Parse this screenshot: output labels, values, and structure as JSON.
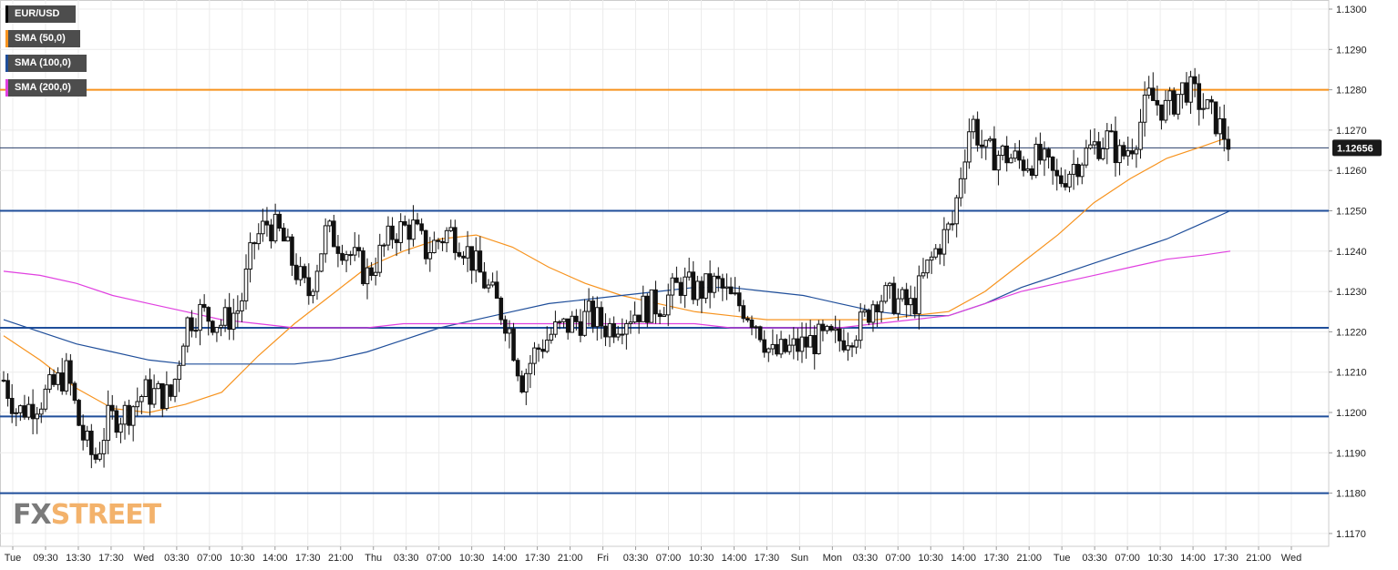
{
  "legend": [
    {
      "label": "EUR/USD",
      "color": "#000000"
    },
    {
      "label": "SMA (50,0)",
      "color": "#f7931e"
    },
    {
      "label": "SMA (100,0)",
      "color": "#1f4e9a"
    },
    {
      "label": "SMA (200,0)",
      "color": "#e040e0"
    }
  ],
  "logo": {
    "part1": "FX",
    "part2": "STREET"
  },
  "price_label": "1.12656",
  "chart_data": {
    "type": "candlestick",
    "instrument": "EUR/USD",
    "ylim": [
      1.1165,
      1.1302
    ],
    "y_ticks": [
      "1.1300",
      "1.1290",
      "1.1280",
      "1.1270",
      "1.1260",
      "1.1250",
      "1.1240",
      "1.1230",
      "1.1220",
      "1.1210",
      "1.1200",
      "1.1190",
      "1.1180",
      "1.1170"
    ],
    "x_ticks": [
      "Tue",
      "09:30",
      "13:30",
      "17:30",
      "Wed",
      "03:30",
      "07:00",
      "10:30",
      "14:00",
      "17:30",
      "21:00",
      "Thu",
      "03:30",
      "07:00",
      "10:30",
      "14:00",
      "17:30",
      "21:00",
      "Fri",
      "03:30",
      "07:00",
      "10:30",
      "14:00",
      "17:30",
      "Sun",
      "Mon",
      "03:30",
      "07:00",
      "10:30",
      "14:00",
      "17:30",
      "21:00",
      "Tue",
      "03:30",
      "07:00",
      "10:30",
      "14:00",
      "17:30",
      "21:00",
      "Wed"
    ],
    "grid": true,
    "horizontal_levels": [
      {
        "value": 1.128,
        "color": "#f7931e"
      },
      {
        "value": 1.125,
        "color": "#1f4e9a"
      },
      {
        "value": 1.1221,
        "color": "#1f4e9a"
      },
      {
        "value": 1.1199,
        "color": "#1f4e9a"
      },
      {
        "value": 1.118,
        "color": "#1f4e9a"
      }
    ],
    "last_price": 1.12656,
    "close_path": [
      [
        0,
        1.1208
      ],
      [
        15,
        1.12
      ],
      [
        40,
        1.1203
      ],
      [
        70,
        1.121
      ],
      [
        85,
        1.1195
      ],
      [
        100,
        1.1188
      ],
      [
        115,
        1.1198
      ],
      [
        135,
        1.12
      ],
      [
        155,
        1.1205
      ],
      [
        185,
        1.1204
      ],
      [
        200,
        1.1222
      ],
      [
        215,
        1.1225
      ],
      [
        240,
        1.1222
      ],
      [
        260,
        1.1226
      ],
      [
        275,
        1.1242
      ],
      [
        290,
        1.1247
      ],
      [
        305,
        1.1244
      ],
      [
        320,
        1.1236
      ],
      [
        335,
        1.1229
      ],
      [
        355,
        1.1245
      ],
      [
        375,
        1.1241
      ],
      [
        400,
        1.1234
      ],
      [
        430,
        1.1245
      ],
      [
        450,
        1.1246
      ],
      [
        465,
        1.124
      ],
      [
        490,
        1.1245
      ],
      [
        505,
        1.1242
      ],
      [
        520,
        1.1236
      ],
      [
        540,
        1.1228
      ],
      [
        555,
        1.1222
      ],
      [
        570,
        1.1208
      ],
      [
        585,
        1.1215
      ],
      [
        605,
        1.122
      ],
      [
        625,
        1.1222
      ],
      [
        645,
        1.1224
      ],
      [
        665,
        1.1221
      ],
      [
        685,
        1.1224
      ],
      [
        705,
        1.1226
      ],
      [
        725,
        1.1227
      ],
      [
        745,
        1.1232
      ],
      [
        765,
        1.123
      ],
      [
        785,
        1.1232
      ],
      [
        800,
        1.1228
      ],
      [
        815,
        1.1226
      ],
      [
        830,
        1.1222
      ],
      [
        845,
        1.1214
      ],
      [
        870,
        1.1216
      ],
      [
        895,
        1.1218
      ],
      [
        920,
        1.1218
      ],
      [
        945,
        1.1222
      ],
      [
        960,
        1.1229
      ],
      [
        980,
        1.1228
      ],
      [
        1000,
        1.1226
      ],
      [
        1015,
        1.1235
      ],
      [
        1030,
        1.1242
      ],
      [
        1045,
        1.1247
      ],
      [
        1055,
        1.1262
      ],
      [
        1065,
        1.1273
      ],
      [
        1080,
        1.1264
      ],
      [
        1100,
        1.1264
      ],
      [
        1120,
        1.1262
      ],
      [
        1140,
        1.1263
      ],
      [
        1160,
        1.1257
      ],
      [
        1180,
        1.1262
      ],
      [
        1200,
        1.1266
      ],
      [
        1215,
        1.1268
      ],
      [
        1230,
        1.1263
      ],
      [
        1245,
        1.1268
      ],
      [
        1260,
        1.1278
      ],
      [
        1280,
        1.1275
      ],
      [
        1300,
        1.1281
      ],
      [
        1320,
        1.1276
      ],
      [
        1335,
        1.1272
      ],
      [
        1352,
        1.12656
      ]
    ],
    "series": [
      {
        "name": "SMA (50,0)",
        "color": "#f7931e",
        "points": [
          [
            0,
            1.1219
          ],
          [
            40,
            1.1213
          ],
          [
            80,
            1.1206
          ],
          [
            120,
            1.1201
          ],
          [
            160,
            1.12
          ],
          [
            200,
            1.1202
          ],
          [
            240,
            1.1205
          ],
          [
            280,
            1.1214
          ],
          [
            320,
            1.1222
          ],
          [
            360,
            1.1229
          ],
          [
            400,
            1.1236
          ],
          [
            440,
            1.124
          ],
          [
            480,
            1.1243
          ],
          [
            520,
            1.1244
          ],
          [
            560,
            1.1241
          ],
          [
            600,
            1.1236
          ],
          [
            640,
            1.1232
          ],
          [
            680,
            1.1229
          ],
          [
            720,
            1.1227
          ],
          [
            760,
            1.1225
          ],
          [
            800,
            1.1224
          ],
          [
            840,
            1.1223
          ],
          [
            880,
            1.1223
          ],
          [
            920,
            1.1223
          ],
          [
            960,
            1.1223
          ],
          [
            1000,
            1.1224
          ],
          [
            1040,
            1.1225
          ],
          [
            1080,
            1.123
          ],
          [
            1120,
            1.1237
          ],
          [
            1160,
            1.1244
          ],
          [
            1200,
            1.1252
          ],
          [
            1240,
            1.1258
          ],
          [
            1280,
            1.1263
          ],
          [
            1320,
            1.1266
          ],
          [
            1345,
            1.1268
          ]
        ]
      },
      {
        "name": "SMA (100,0)",
        "color": "#1f4e9a",
        "points": [
          [
            0,
            1.1223
          ],
          [
            40,
            1.122
          ],
          [
            80,
            1.1217
          ],
          [
            120,
            1.1215
          ],
          [
            160,
            1.1213
          ],
          [
            200,
            1.1212
          ],
          [
            240,
            1.1212
          ],
          [
            280,
            1.1212
          ],
          [
            320,
            1.1212
          ],
          [
            360,
            1.1213
          ],
          [
            400,
            1.1215
          ],
          [
            440,
            1.1218
          ],
          [
            480,
            1.1221
          ],
          [
            520,
            1.1223
          ],
          [
            560,
            1.1225
          ],
          [
            600,
            1.1227
          ],
          [
            640,
            1.1228
          ],
          [
            680,
            1.1229
          ],
          [
            720,
            1.123
          ],
          [
            760,
            1.1231
          ],
          [
            800,
            1.1231
          ],
          [
            840,
            1.123
          ],
          [
            880,
            1.1229
          ],
          [
            920,
            1.1227
          ],
          [
            960,
            1.1225
          ],
          [
            1000,
            1.1224
          ],
          [
            1040,
            1.1224
          ],
          [
            1080,
            1.1227
          ],
          [
            1120,
            1.1231
          ],
          [
            1160,
            1.1234
          ],
          [
            1200,
            1.1237
          ],
          [
            1240,
            1.124
          ],
          [
            1280,
            1.1243
          ],
          [
            1320,
            1.1247
          ],
          [
            1350,
            1.125
          ]
        ]
      },
      {
        "name": "SMA (200,0)",
        "color": "#e040e0",
        "points": [
          [
            0,
            1.1235
          ],
          [
            40,
            1.1234
          ],
          [
            80,
            1.1232
          ],
          [
            120,
            1.1229
          ],
          [
            160,
            1.1227
          ],
          [
            200,
            1.1225
          ],
          [
            240,
            1.1223
          ],
          [
            280,
            1.1222
          ],
          [
            320,
            1.1221
          ],
          [
            360,
            1.1221
          ],
          [
            400,
            1.1221
          ],
          [
            440,
            1.1222
          ],
          [
            480,
            1.1222
          ],
          [
            520,
            1.1222
          ],
          [
            560,
            1.1222
          ],
          [
            600,
            1.1222
          ],
          [
            640,
            1.1222
          ],
          [
            680,
            1.1222
          ],
          [
            720,
            1.1222
          ],
          [
            760,
            1.1222
          ],
          [
            800,
            1.1221
          ],
          [
            840,
            1.1221
          ],
          [
            880,
            1.1221
          ],
          [
            920,
            1.1221
          ],
          [
            960,
            1.1222
          ],
          [
            1000,
            1.1223
          ],
          [
            1040,
            1.1224
          ],
          [
            1080,
            1.1227
          ],
          [
            1120,
            1.123
          ],
          [
            1160,
            1.1232
          ],
          [
            1200,
            1.1234
          ],
          [
            1240,
            1.1236
          ],
          [
            1280,
            1.1238
          ],
          [
            1320,
            1.1239
          ],
          [
            1350,
            1.124
          ]
        ]
      }
    ]
  }
}
